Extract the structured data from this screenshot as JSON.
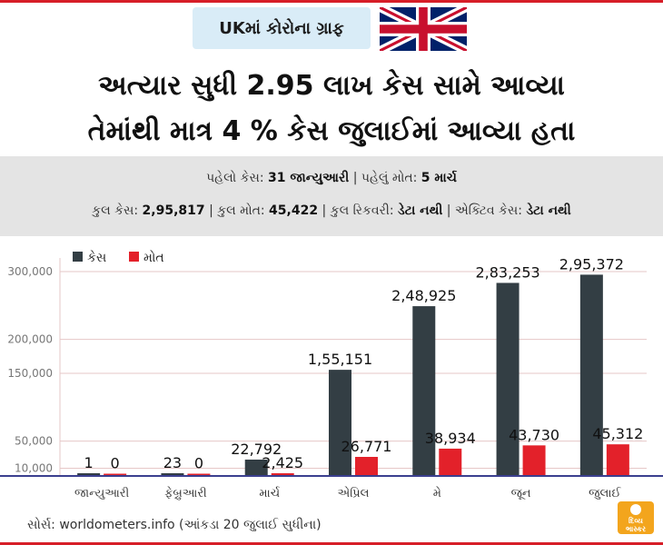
{
  "header": {
    "tag": "UKમાં કોરોના ગ્રાફ",
    "headline_line1": "અત્યાર સુધી 2.95 લાખ કેસ સામે આવ્યા",
    "headline_line2": "તેમાંથી માત્ર 4 % કેસ જુલાઈમાં આવ્યા હતા"
  },
  "info": {
    "first_case_label": "પહેલો કેસ:",
    "first_case_value": "31 જાન્યુઆરી",
    "first_death_label": "પહેલું મોત:",
    "first_death_value": "5 માર્ચ",
    "total_cases_label": "કુલ કેસ:",
    "total_cases_value": "2,95,817",
    "total_deaths_label": "કુલ મોત:",
    "total_deaths_value": "45,422",
    "recovery_label": "કુલ રિકવરી:",
    "recovery_value": "ડેટા નથી",
    "active_label": "એક્ટિવ કેસ:",
    "active_value": "ડેટા નથી",
    "separator": "|"
  },
  "chart_data": {
    "type": "bar",
    "categories": [
      "જાન્યુઆરી",
      "ફેબ્રુઆરી",
      "માર્ચ",
      "એપ્રિલ",
      "મે",
      "જૂન",
      "જુલાઈ"
    ],
    "series": [
      {
        "name": "કેસ",
        "color": "#333e44",
        "values": [
          1,
          23,
          22792,
          155151,
          248925,
          283253,
          295372
        ],
        "labels": [
          "1",
          "23",
          "22,792",
          "1,55,151",
          "2,48,925",
          "2,83,253",
          "2,95,372"
        ]
      },
      {
        "name": "મોત",
        "color": "#e3212a",
        "values": [
          0,
          0,
          2425,
          26771,
          38934,
          43730,
          45312
        ],
        "labels": [
          "0",
          "0",
          "2,425",
          "26,771",
          "38,934",
          "43,730",
          "45,312"
        ]
      }
    ],
    "yticks": [
      10000,
      50000,
      150000,
      200000,
      300000
    ],
    "ytick_labels": [
      "10,000",
      "50,000",
      "150,000",
      "200,000",
      "300,000"
    ],
    "ylim": [
      0,
      320000
    ],
    "grid": true,
    "legend": "top-left"
  },
  "source": "સોર્સ: worldometers.info (આંકડા 20 જુલાઈ સુધીના)",
  "logo": {
    "line1": "દિવ્ય",
    "line2": "ભાસ્કર"
  },
  "colors": {
    "accent": "#d71e28",
    "cases": "#333e44",
    "deaths": "#e3212a",
    "info_bg": "#e4e4e4",
    "tag_bg": "#d9ecf7"
  }
}
